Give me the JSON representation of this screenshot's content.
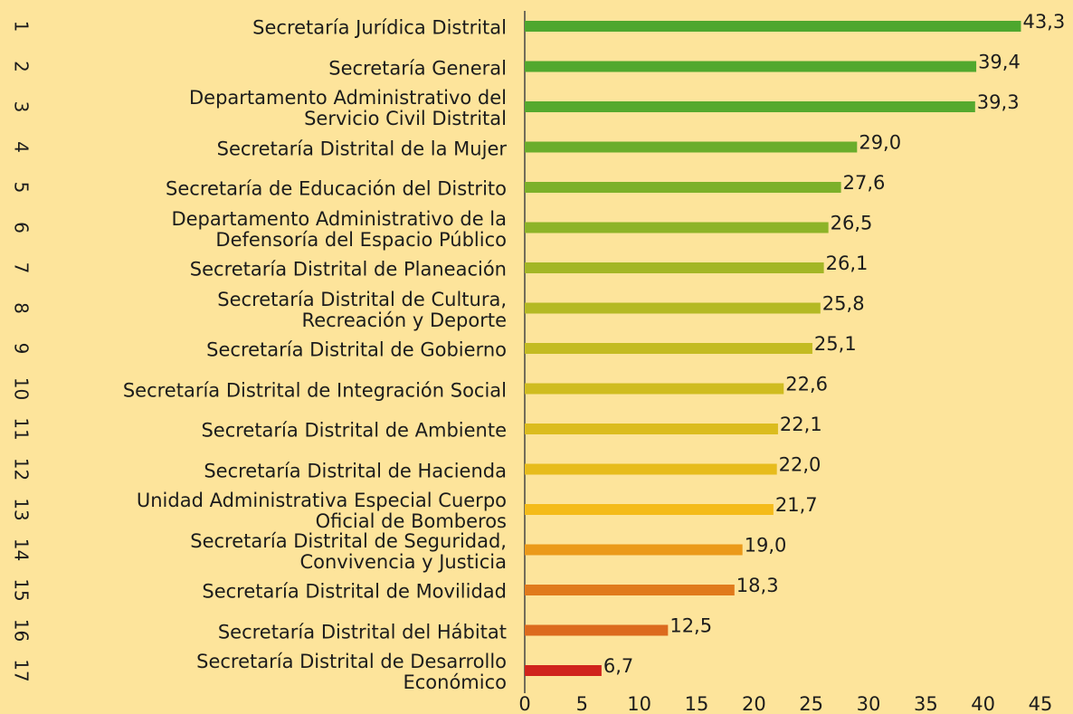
{
  "chart_data": {
    "type": "bar",
    "orientation": "horizontal",
    "ranks": [
      "1",
      "2",
      "3",
      "4",
      "5",
      "6",
      "7",
      "8",
      "9",
      "10",
      "11",
      "12",
      "13",
      "14",
      "15",
      "16",
      "17"
    ],
    "categories": [
      "Secretaría Jurídica Distrital",
      "Secretaría General",
      "Departamento Administrativo del\nServicio Civil Distrital",
      "Secretaría Distrital de la Mujer",
      "Secretaría de Educación del Distrito",
      "Departamento Administrativo de la\nDefensoría del Espacio Público",
      "Secretaría Distrital de Planeación",
      "Secretaría Distrital de Cultura,\nRecreación y Deporte",
      "Secretaría Distrital de Gobierno",
      "Secretaría Distrital de Integración Social",
      "Secretaría Distrital de Ambiente",
      "Secretaría Distrital de Hacienda",
      "Unidad Administrativa Especial Cuerpo\nOficial de Bomberos",
      "Secretaría Distrital de Seguridad,\nConvivencia y Justicia",
      "Secretaría Distrital de Movilidad",
      "Secretaría Distrital del Hábitat",
      "Secretaría Distrital de Desarrollo\nEconómico"
    ],
    "values": [
      43.3,
      39.4,
      39.3,
      29.0,
      27.6,
      26.5,
      26.1,
      25.8,
      25.1,
      22.6,
      22.1,
      22.0,
      21.7,
      19.0,
      18.3,
      12.5,
      6.7
    ],
    "value_labels": [
      "43,3",
      "39,4",
      "39,3",
      "29,0",
      "27,6",
      "26,5",
      "26,1",
      "25,8",
      "25,1",
      "22,6",
      "22,1",
      "22,0",
      "21,7",
      "19,0",
      "18,3",
      "12,5",
      "6,7"
    ],
    "colors": [
      "#4ea72e",
      "#51a82e",
      "#55a92e",
      "#6aad2c",
      "#7cb02a",
      "#8db328",
      "#a3b626",
      "#b4b924",
      "#c3bb22",
      "#cfbc20",
      "#dbbc1e",
      "#e7bc1c",
      "#f4bb1a",
      "#eb9a1a",
      "#e07a1c",
      "#dc6a1e",
      "#d0231c"
    ],
    "xlim": [
      0,
      45
    ],
    "xticks": [
      0,
      5,
      10,
      15,
      20,
      25,
      30,
      35,
      40,
      45
    ],
    "grid": false
  }
}
